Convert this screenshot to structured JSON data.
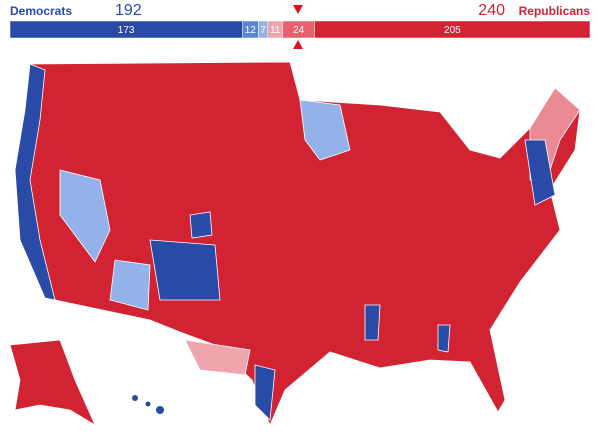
{
  "header": {
    "dem_label": "Democrats",
    "dem_total": 192,
    "rep_total": 240,
    "rep_label": "Republicans"
  },
  "bar": {
    "segments": [
      {
        "value": 173,
        "color": "#2a4aa8"
      },
      {
        "value": 12,
        "color": "#5b84d6"
      },
      {
        "value": 7,
        "color": "#94b2ea"
      },
      {
        "value": 11,
        "color": "#f0a5ae"
      },
      {
        "value": 24,
        "color": "#e6606d"
      },
      {
        "value": 205,
        "color": "#d22333"
      }
    ]
  }
}
